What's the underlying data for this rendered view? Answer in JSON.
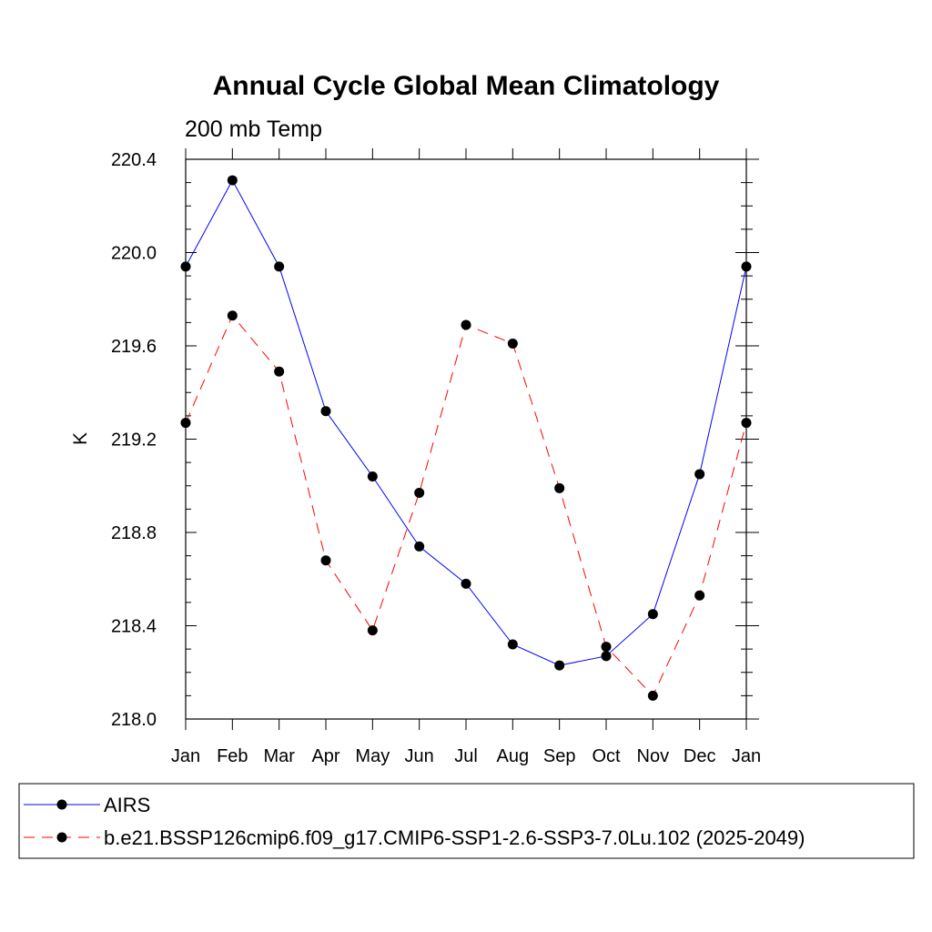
{
  "chart_data": {
    "type": "line",
    "title": "Annual Cycle Global Mean Climatology",
    "subtitle": "200 mb Temp",
    "xlabel": "",
    "ylabel": "K",
    "categories": [
      "Jan",
      "Feb",
      "Mar",
      "Apr",
      "May",
      "Jun",
      "Jul",
      "Aug",
      "Sep",
      "Oct",
      "Nov",
      "Dec",
      "Jan"
    ],
    "ylim": [
      218.0,
      220.4
    ],
    "yticks": [
      "218.0",
      "218.4",
      "218.8",
      "219.2",
      "219.6",
      "220.0",
      "220.4"
    ],
    "grid": false,
    "legend_position": "bottom",
    "series": [
      {
        "name": "AIRS",
        "color": "#0000ff",
        "dash": "solid",
        "values": [
          219.94,
          220.31,
          219.94,
          219.32,
          219.04,
          218.74,
          218.58,
          218.32,
          218.23,
          218.27,
          218.45,
          219.05,
          219.94
        ]
      },
      {
        "name": "b.e21.BSSP126cmip6.f09_g17.CMIP6-SSP1-2.6-SSP3-7.0Lu.102 (2025-2049)",
        "color": "#ff0000",
        "dash": "dashed",
        "values": [
          219.27,
          219.73,
          219.49,
          218.68,
          218.38,
          218.97,
          219.69,
          219.61,
          218.99,
          218.31,
          218.1,
          218.53,
          219.27
        ]
      }
    ]
  }
}
